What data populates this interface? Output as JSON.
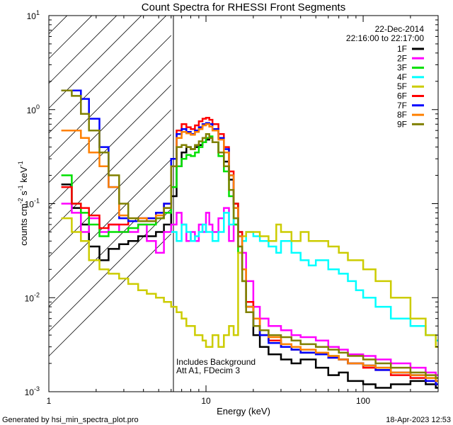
{
  "chart_data": {
    "type": "line",
    "title": "Count Spectra for RHESSI Front Segments",
    "xlabel": "Energy (keV)",
    "ylabel_parts": [
      "counts cm",
      "-2",
      " s",
      "-1",
      " keV",
      "-1"
    ],
    "xscale": "log",
    "yscale": "log",
    "xlim": [
      1,
      300
    ],
    "ylim": [
      0.001,
      10
    ],
    "x_ticks": [
      {
        "v": 1,
        "label": "1"
      },
      {
        "v": 10,
        "label": "10"
      },
      {
        "v": 100,
        "label": "100"
      }
    ],
    "y_ticks": [
      {
        "v": 0.001,
        "base": "10",
        "exp": "-3"
      },
      {
        "v": 0.01,
        "base": "10",
        "exp": "-2"
      },
      {
        "v": 0.1,
        "base": "10",
        "exp": "-1"
      },
      {
        "v": 1,
        "base": "10",
        "exp": "0"
      },
      {
        "v": 10,
        "base": "10",
        "exp": "1"
      }
    ],
    "excluded_region": {
      "from": 1,
      "to": 6,
      "style": "hatched"
    },
    "annotation_date": "22-Dec-2014",
    "annotation_time": "22:16:00 to 22:17:00",
    "note_lines": [
      "Includes Background",
      "Att A1, FDecim 3"
    ],
    "footer_left": "Generated by hsi_min_spectra_plot.pro",
    "footer_right": "18-Apr-2023 12:53",
    "legend_position": "top-right",
    "series": [
      {
        "name": "1F",
        "color": "#000000",
        "x": [
          1.2,
          1.4,
          1.6,
          1.8,
          2.1,
          2.4,
          2.8,
          3.2,
          3.7,
          4.2,
          4.8,
          5.4,
          6,
          6.5,
          7,
          7.5,
          8,
          8.5,
          9,
          9.5,
          10,
          10.5,
          11,
          12,
          13,
          14,
          15,
          16,
          17,
          18,
          20,
          22,
          25,
          30,
          35,
          40,
          50,
          60,
          70,
          80,
          100,
          120,
          150,
          200,
          250,
          290
        ],
        "values": [
          0.16,
          0.09,
          0.06,
          0.035,
          0.025,
          0.033,
          0.037,
          0.04,
          0.045,
          0.045,
          0.05,
          0.06,
          0.12,
          0.25,
          0.35,
          0.4,
          0.38,
          0.4,
          0.42,
          0.45,
          0.48,
          0.5,
          0.45,
          0.35,
          0.28,
          0.18,
          0.1,
          0.05,
          0.02,
          0.008,
          0.004,
          0.003,
          0.0025,
          0.0022,
          0.002,
          0.0022,
          0.0018,
          0.0015,
          0.0016,
          0.0013,
          0.0012,
          0.0011,
          0.0012,
          0.0013,
          0.0012,
          0.0011
        ]
      },
      {
        "name": "2F",
        "color": "#ff00ff",
        "x": [
          1.2,
          1.4,
          1.6,
          1.8,
          2.1,
          2.4,
          2.8,
          3.2,
          3.7,
          4.2,
          4.8,
          5.4,
          6,
          6.5,
          7,
          7.5,
          8,
          8.5,
          9,
          9.5,
          10,
          10.5,
          11,
          12,
          13,
          14,
          15,
          16,
          17,
          18,
          20,
          22,
          25,
          30,
          35,
          40,
          50,
          60,
          70,
          80,
          100,
          120,
          150,
          200,
          250,
          290
        ],
        "values": [
          0.1,
          0.08,
          0.05,
          0.07,
          0.05,
          0.06,
          0.05,
          0.05,
          0.06,
          0.04,
          0.03,
          0.05,
          0.06,
          0.08,
          0.06,
          0.04,
          0.05,
          0.04,
          0.06,
          0.05,
          0.08,
          0.06,
          0.05,
          0.07,
          0.09,
          0.04,
          0.06,
          0.05,
          0.03,
          0.015,
          0.008,
          0.006,
          0.005,
          0.0045,
          0.004,
          0.0038,
          0.0035,
          0.003,
          0.0028,
          0.0025,
          0.0024,
          0.0022,
          0.002,
          0.0018,
          0.0016,
          0.0015
        ]
      },
      {
        "name": "3F",
        "color": "#00e000",
        "x": [
          1.2,
          1.4,
          1.6,
          1.8,
          2.1,
          2.4,
          2.8,
          3.2,
          3.7,
          4.2,
          4.8,
          5.4,
          6,
          6.5,
          7,
          7.5,
          8,
          8.5,
          9,
          9.5,
          10,
          10.5,
          11,
          12,
          13,
          14,
          15,
          16,
          17,
          18,
          20,
          22,
          25,
          30,
          35,
          40,
          50,
          60,
          70,
          80,
          100,
          120,
          150,
          200,
          250,
          290
        ],
        "values": [
          0.2,
          0.1,
          0.08,
          0.06,
          0.045,
          0.05,
          0.05,
          0.055,
          0.06,
          0.06,
          0.07,
          0.08,
          0.15,
          0.25,
          0.3,
          0.33,
          0.32,
          0.35,
          0.4,
          0.45,
          0.5,
          0.52,
          0.45,
          0.32,
          0.22,
          0.12,
          0.06,
          0.03,
          0.015,
          0.008,
          0.005,
          0.004,
          0.0035,
          0.003,
          0.0028,
          0.0026,
          0.0025,
          0.0024,
          0.0022,
          0.002,
          0.0019,
          0.0018,
          0.0016,
          0.0015,
          0.0014,
          0.0013
        ]
      },
      {
        "name": "4F",
        "color": "#00ffff",
        "x": [
          6,
          6.5,
          7,
          7.5,
          8,
          8.5,
          9,
          9.5,
          10,
          11,
          12,
          13,
          14,
          15,
          16,
          17,
          18,
          20,
          22,
          25,
          28,
          30,
          35,
          40,
          45,
          50,
          60,
          70,
          80,
          90,
          100,
          120,
          150,
          200,
          250,
          290
        ],
        "values": [
          0.05,
          0.04,
          0.06,
          0.05,
          0.04,
          0.045,
          0.05,
          0.06,
          0.05,
          0.04,
          0.05,
          0.08,
          0.06,
          0.07,
          0.05,
          0.04,
          0.05,
          0.045,
          0.04,
          0.035,
          0.03,
          0.04,
          0.03,
          0.025,
          0.022,
          0.025,
          0.02,
          0.018,
          0.015,
          0.012,
          0.01,
          0.008,
          0.006,
          0.005,
          0.004,
          0.0035
        ]
      },
      {
        "name": "5F",
        "color": "#cccc00",
        "x": [
          1.2,
          1.4,
          1.6,
          1.8,
          2.1,
          2.4,
          2.8,
          3.2,
          3.7,
          4.2,
          4.8,
          5.4,
          6,
          6.5,
          7,
          7.5,
          8,
          8.5,
          9,
          9.5,
          10,
          11,
          12,
          13,
          14,
          15,
          16,
          17,
          18,
          20,
          22,
          25,
          28,
          30,
          35,
          40,
          45,
          50,
          60,
          70,
          80,
          100,
          120,
          150,
          200,
          250,
          290
        ],
        "values": [
          0.07,
          0.05,
          0.04,
          0.025,
          0.02,
          0.018,
          0.016,
          0.014,
          0.012,
          0.011,
          0.01,
          0.009,
          0.008,
          0.007,
          0.006,
          0.005,
          0.005,
          0.004,
          0.004,
          0.0035,
          0.003,
          0.004,
          0.003,
          0.004,
          0.005,
          0.004,
          0.03,
          0.045,
          0.05,
          0.05,
          0.045,
          0.04,
          0.06,
          0.05,
          0.04,
          0.05,
          0.04,
          0.04,
          0.035,
          0.03,
          0.025,
          0.02,
          0.015,
          0.01,
          0.006,
          0.004,
          0.003
        ]
      },
      {
        "name": "6F",
        "color": "#ff0000",
        "x": [
          1.2,
          1.4,
          1.6,
          1.8,
          2.1,
          2.4,
          2.8,
          3.2,
          3.7,
          4.2,
          4.8,
          5.4,
          6,
          6.5,
          7,
          7.5,
          8,
          8.5,
          9,
          9.5,
          10,
          10.5,
          11,
          12,
          13,
          14,
          15,
          16,
          17,
          18,
          20,
          22,
          25,
          30,
          35,
          40,
          50,
          60,
          70,
          80,
          100,
          120,
          150,
          200,
          250,
          290
        ],
        "values": [
          0.15,
          0.1,
          0.09,
          0.075,
          0.055,
          0.06,
          0.06,
          0.065,
          0.07,
          0.07,
          0.08,
          0.1,
          0.3,
          0.6,
          0.7,
          0.65,
          0.62,
          0.68,
          0.75,
          0.8,
          0.82,
          0.78,
          0.7,
          0.55,
          0.4,
          0.22,
          0.1,
          0.05,
          0.02,
          0.009,
          0.006,
          0.004,
          0.0035,
          0.003,
          0.0028,
          0.0026,
          0.0025,
          0.0023,
          0.0022,
          0.002,
          0.0018,
          0.0017,
          0.0015,
          0.0014,
          0.0013,
          0.0012
        ]
      },
      {
        "name": "7F",
        "color": "#0000ff",
        "x": [
          1.2,
          1.4,
          1.6,
          1.8,
          2.1,
          2.4,
          2.8,
          3.2,
          3.7,
          4.2,
          4.8,
          5.4,
          6,
          6.5,
          7,
          7.5,
          8,
          8.5,
          9,
          9.5,
          10,
          10.5,
          11,
          12,
          13,
          14,
          15,
          16,
          17,
          18,
          20,
          22,
          25,
          30,
          35,
          40,
          50,
          60,
          70,
          80,
          100,
          120,
          150,
          200,
          250,
          290
        ],
        "values": [
          1.6,
          1.6,
          1.3,
          0.8,
          0.4,
          0.15,
          0.07,
          0.065,
          0.07,
          0.07,
          0.08,
          0.1,
          0.3,
          0.55,
          0.62,
          0.58,
          0.55,
          0.6,
          0.65,
          0.7,
          0.72,
          0.7,
          0.62,
          0.5,
          0.38,
          0.2,
          0.09,
          0.045,
          0.02,
          0.008,
          0.005,
          0.004,
          0.0033,
          0.003,
          0.0028,
          0.0026,
          0.0025,
          0.0023,
          0.0022,
          0.002,
          0.0019,
          0.0017,
          0.0016,
          0.0015,
          0.0013,
          0.0012
        ]
      },
      {
        "name": "8F",
        "color": "#ff8000",
        "x": [
          1.2,
          1.4,
          1.6,
          1.8,
          2.1,
          2.4,
          2.8,
          3.2,
          3.7,
          4.2,
          4.8,
          5.4,
          6,
          6.5,
          7,
          7.5,
          8,
          8.5,
          9,
          9.5,
          10,
          10.5,
          11,
          12,
          13,
          14,
          15,
          16,
          17,
          18,
          20,
          22,
          25,
          30,
          35,
          40,
          50,
          60,
          70,
          80,
          100,
          120,
          150,
          200,
          250,
          290
        ],
        "values": [
          0.6,
          0.6,
          0.5,
          0.35,
          0.25,
          0.15,
          0.075,
          0.07,
          0.07,
          0.065,
          0.075,
          0.09,
          0.25,
          0.5,
          0.58,
          0.56,
          0.54,
          0.58,
          0.62,
          0.68,
          0.7,
          0.66,
          0.6,
          0.48,
          0.35,
          0.2,
          0.09,
          0.045,
          0.02,
          0.008,
          0.006,
          0.0045,
          0.0038,
          0.0032,
          0.003,
          0.0028,
          0.0026,
          0.0024,
          0.0022,
          0.002,
          0.0019,
          0.0018,
          0.0016,
          0.0015,
          0.0014,
          0.0013
        ]
      },
      {
        "name": "9F",
        "color": "#808000",
        "x": [
          1.2,
          1.4,
          1.6,
          1.8,
          2.1,
          2.4,
          2.8,
          3.2,
          3.7,
          4.2,
          4.8,
          5.4,
          6,
          6.5,
          7,
          7.5,
          8,
          8.5,
          9,
          9.5,
          10,
          10.5,
          11,
          12,
          13,
          14,
          15,
          16,
          17,
          18,
          20,
          22,
          25,
          30,
          35,
          40,
          50,
          60,
          70,
          80,
          100,
          120,
          150,
          200,
          250,
          290
        ],
        "values": [
          1.6,
          1.4,
          0.9,
          0.6,
          0.35,
          0.2,
          0.1,
          0.07,
          0.065,
          0.065,
          0.07,
          0.09,
          0.25,
          0.4,
          0.42,
          0.4,
          0.38,
          0.42,
          0.46,
          0.5,
          0.55,
          0.5,
          0.45,
          0.35,
          0.25,
          0.14,
          0.07,
          0.035,
          0.015,
          0.007,
          0.005,
          0.0045,
          0.004,
          0.0038,
          0.0035,
          0.0032,
          0.003,
          0.0028,
          0.0026,
          0.0024,
          0.0022,
          0.002,
          0.0018,
          0.0016,
          0.0015,
          0.0014
        ]
      }
    ]
  }
}
